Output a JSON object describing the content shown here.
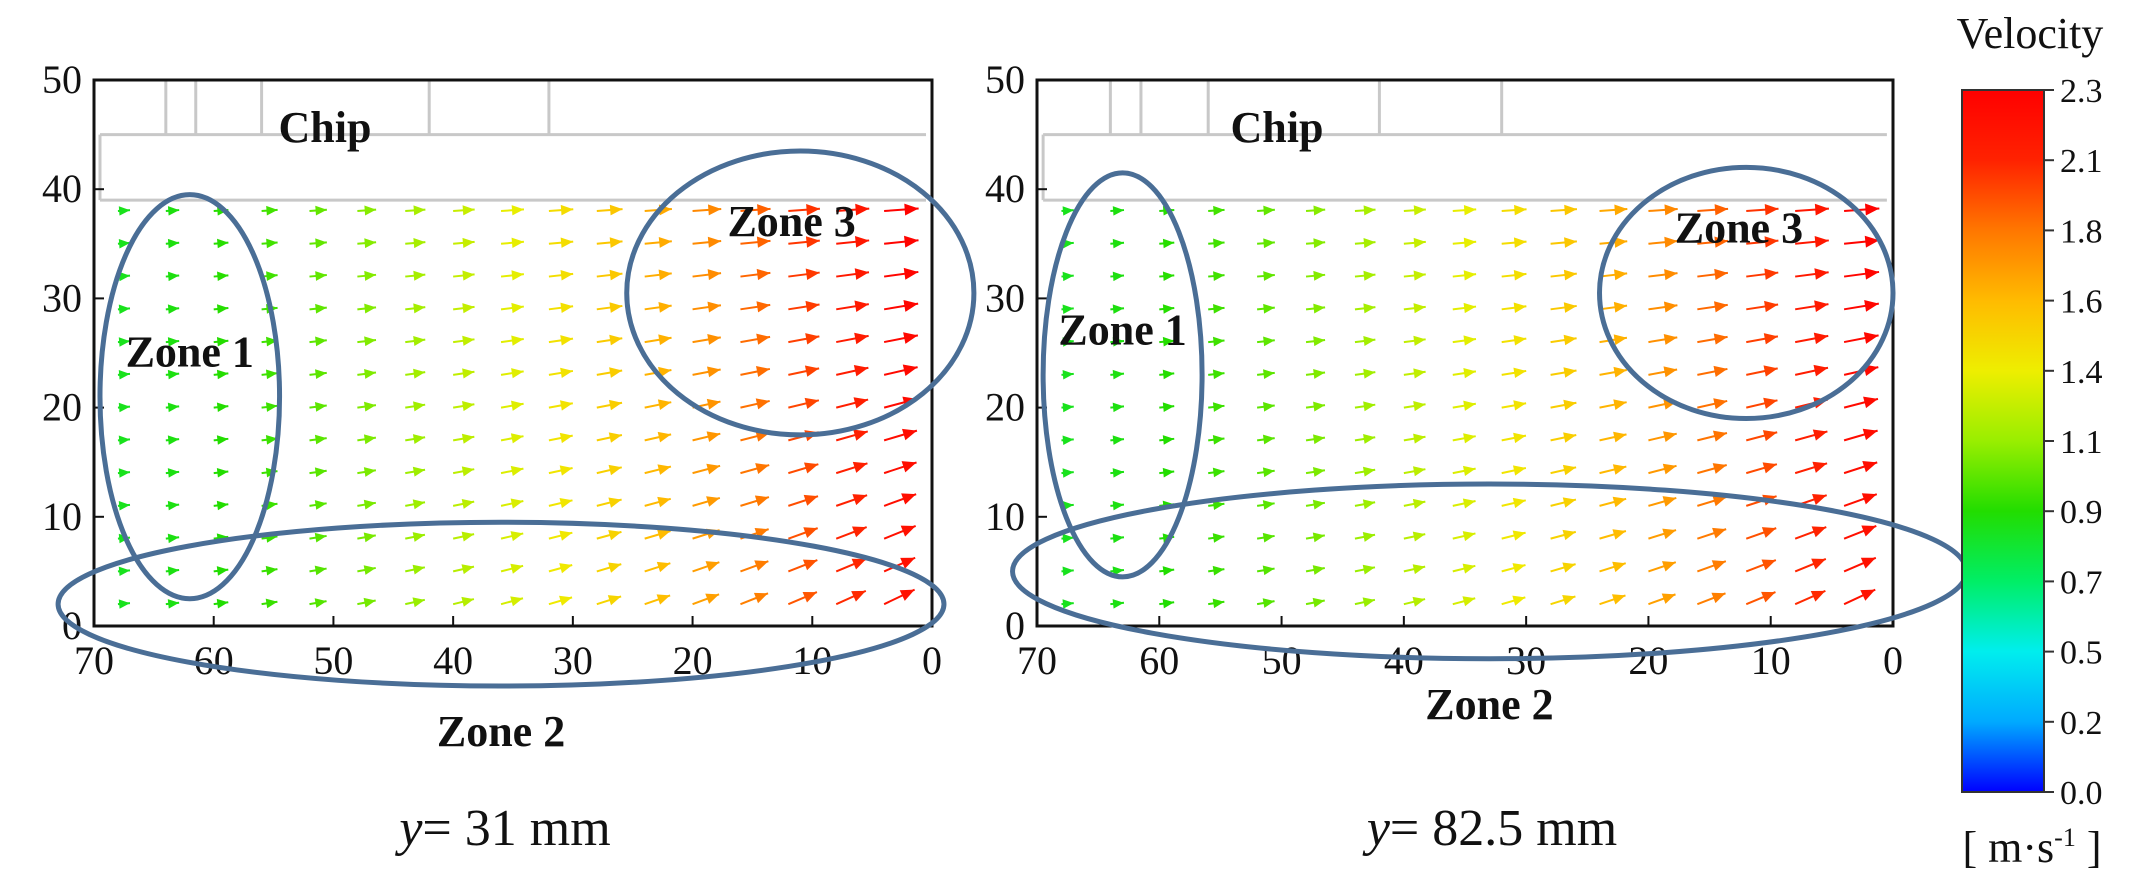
{
  "chart_data": [
    {
      "type": "vector-field",
      "title": "",
      "caption_var": "y",
      "caption_rest": "= 31 mm",
      "xlim": [
        70,
        0
      ],
      "ylim": [
        0,
        50
      ],
      "xticks": [
        "70",
        "60",
        "50",
        "40",
        "30",
        "20",
        "10",
        "0"
      ],
      "yticks": [
        "0",
        "10",
        "20",
        "30",
        "40",
        "50"
      ],
      "chip_label": "Chip",
      "zones": [
        {
          "label": "Zone 1",
          "cx": 62,
          "cy": 21,
          "rx": 7.5,
          "ry": 18.5
        },
        {
          "label": "Zone 2",
          "cx": 36,
          "cy": 2,
          "rx": 37,
          "ry": 7.5
        },
        {
          "label": "Zone 3",
          "cx": 11,
          "cy": 30.5,
          "rx": 14.5,
          "ry": 13
        }
      ],
      "velocity_range_m_s": [
        0.8,
        2.3
      ]
    },
    {
      "type": "vector-field",
      "title": "",
      "caption_var": "y",
      "caption_rest": "= 82.5 mm",
      "xlim": [
        70,
        0
      ],
      "ylim": [
        0,
        50
      ],
      "xticks": [
        "70",
        "60",
        "50",
        "40",
        "30",
        "20",
        "10",
        "0"
      ],
      "yticks": [
        "0",
        "10",
        "20",
        "30",
        "40",
        "50"
      ],
      "chip_label": "Chip",
      "zones": [
        {
          "label": "Zone 1",
          "cx": 63,
          "cy": 23,
          "rx": 6.5,
          "ry": 18.5
        },
        {
          "label": "Zone 2",
          "cx": 33,
          "cy": 5,
          "rx": 39,
          "ry": 8
        },
        {
          "label": "Zone 3",
          "cx": 12,
          "cy": 30.5,
          "rx": 12,
          "ry": 11.5
        }
      ],
      "velocity_range_m_s": [
        0.8,
        2.3
      ]
    }
  ],
  "colorbar": {
    "title": "Velocity",
    "ticks": [
      "2.3",
      "2.1",
      "1.8",
      "1.6",
      "1.4",
      "1.1",
      "0.9",
      "0.7",
      "0.5",
      "0.2",
      "0.0"
    ],
    "unit": "[ m·s",
    "unit_exp": "-1",
    "unit_close": " ]",
    "colors": [
      "#0000ff",
      "#00aaff",
      "#00eeee",
      "#00ee66",
      "#22dd00",
      "#99ee00",
      "#eeee00",
      "#ffbb00",
      "#ff7700",
      "#ff2200",
      "#ff0000"
    ]
  }
}
